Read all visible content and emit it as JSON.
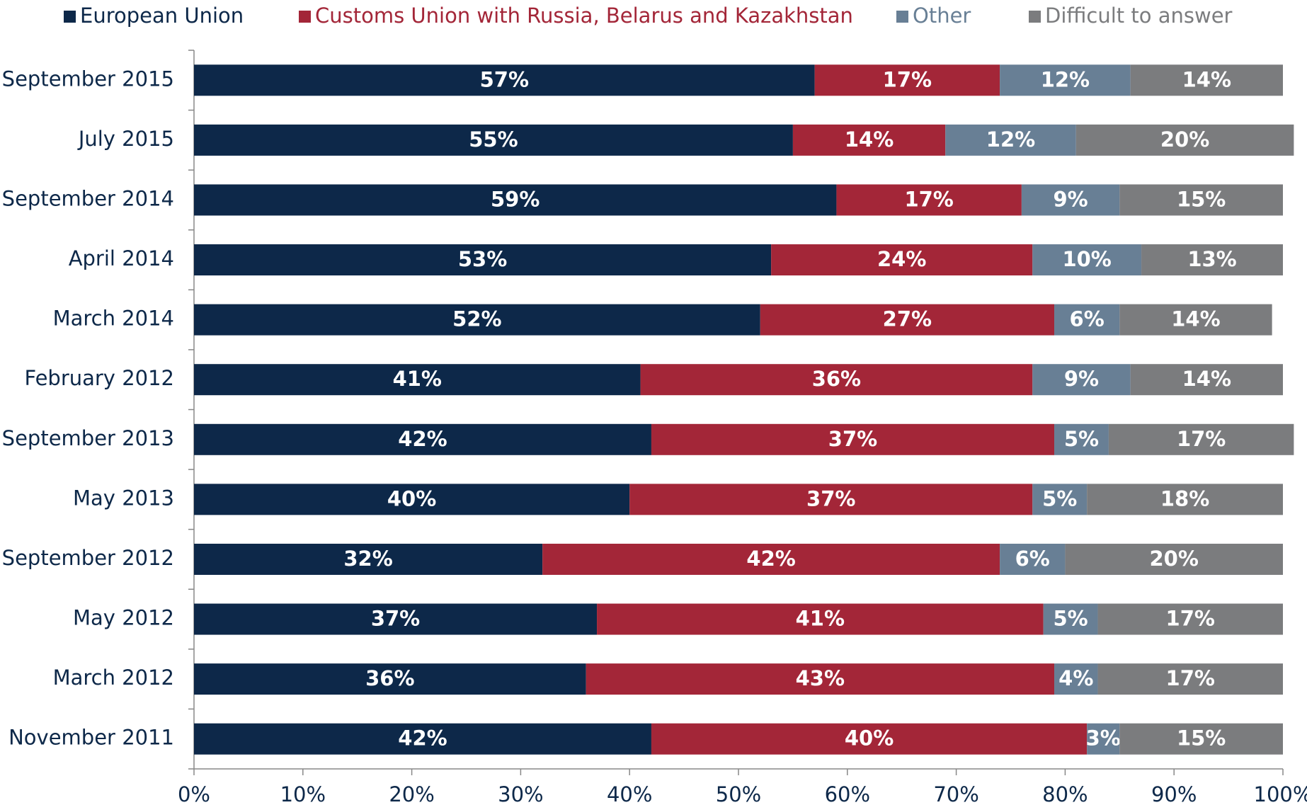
{
  "chart_data": {
    "type": "stacked-bar-horizontal",
    "categories": [
      "September 2015",
      "July 2015",
      "September 2014",
      "April 2014",
      "March 2014",
      "February 2012",
      "September 2013",
      "May 2013",
      "September 2012",
      "May 2012",
      "March 2012",
      "November 2011"
    ],
    "series": [
      {
        "name": "European Union",
        "color": "#0d2849",
        "values": [
          57,
          55,
          59,
          53,
          52,
          41,
          42,
          40,
          32,
          37,
          36,
          42
        ],
        "value_labels": [
          "57%",
          "55%",
          "59%",
          "53%",
          "52%",
          "41%",
          "42%",
          "40%",
          "32%",
          "37%",
          "36%",
          "42%"
        ]
      },
      {
        "name": "Customs Union with Russia, Belarus and Kazakhstan",
        "color": "#a32638",
        "values": [
          17,
          14,
          17,
          24,
          27,
          36,
          37,
          37,
          42,
          41,
          43,
          40
        ],
        "value_labels": [
          "17%",
          "14%",
          "17%",
          "24%",
          "27%",
          "36%",
          "37%",
          "37%",
          "42%",
          "41%",
          "43%",
          "40%"
        ]
      },
      {
        "name": "Other",
        "color": "#687f95",
        "values": [
          12,
          12,
          9,
          10,
          6,
          9,
          5,
          5,
          6,
          5,
          4,
          3
        ],
        "value_labels": [
          "12%",
          "12%",
          "9%",
          "10%",
          "6%",
          "9%",
          "5%",
          "5%",
          "6%",
          "5%",
          "4%",
          "3%"
        ]
      },
      {
        "name": "Difficult to answer",
        "color": "#7b7c7e",
        "values": [
          14,
          20,
          15,
          13,
          14,
          14,
          17,
          18,
          20,
          17,
          17,
          15
        ],
        "value_labels": [
          "14%",
          "20%",
          "15%",
          "13%",
          "14%",
          "14%",
          "17%",
          "18%",
          "20%",
          "17%",
          "17%",
          "15%"
        ]
      }
    ],
    "xlim": [
      0,
      100
    ],
    "xticks": [
      {
        "value": 0,
        "label": "0%"
      },
      {
        "value": 10,
        "label": "10%"
      },
      {
        "value": 20,
        "label": "20%"
      },
      {
        "value": 30,
        "label": "30%"
      },
      {
        "value": 40,
        "label": "40%"
      },
      {
        "value": 50,
        "label": "50%"
      },
      {
        "value": 60,
        "label": "60%"
      },
      {
        "value": 70,
        "label": "70%"
      },
      {
        "value": 80,
        "label": "80%"
      },
      {
        "value": 90,
        "label": "90%"
      },
      {
        "value": 100,
        "label": "100%"
      }
    ],
    "legend": "top"
  }
}
